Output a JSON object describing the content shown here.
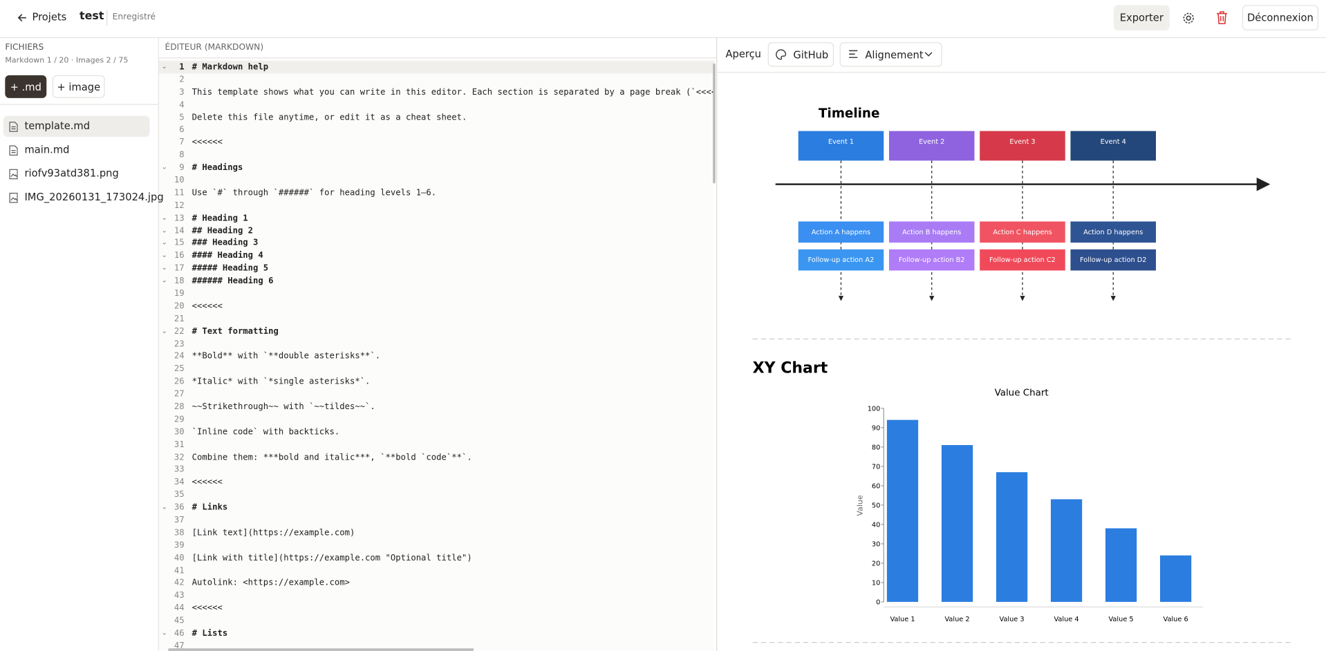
{
  "header": {
    "back": "Projets",
    "project": "test",
    "status": "Enregistré",
    "export": "Exporter",
    "logout": "Déconnexion"
  },
  "sidebar": {
    "title": "FICHIERS",
    "quota": "Markdown 1 / 20 · Images 2 / 75",
    "new_md": "+ .md",
    "new_image": "+ image",
    "files": [
      {
        "name": "template.md",
        "kind": "doc",
        "selected": true
      },
      {
        "name": "main.md",
        "kind": "doc"
      },
      {
        "name": "riofv93atd381.png",
        "kind": "img"
      },
      {
        "name": "IMG_20260131_173024.jpg",
        "kind": "img"
      }
    ]
  },
  "editor": {
    "title": "ÉDITEUR (MARKDOWN)",
    "lines": [
      {
        "number": 1,
        "text": "# Markdown help",
        "fold": true
      },
      {
        "number": 2
      },
      {
        "number": 3,
        "text": "This template shows what you can write in this editor. Each section is separated by a page break (`<<<<<<`"
      },
      {
        "number": 4
      },
      {
        "number": 5,
        "text": "Delete this file anytime, or edit it as a cheat sheet."
      },
      {
        "number": 6
      },
      {
        "number": 7,
        "text": "<<<<<<"
      },
      {
        "number": 8
      },
      {
        "number": 9,
        "text": "# Headings",
        "fold": true
      },
      {
        "number": 10
      },
      {
        "number": 11,
        "text": "Use `#` through `######` for heading levels 1–6."
      },
      {
        "number": 12
      },
      {
        "number": 13,
        "text": "# Heading 1",
        "fold": true
      },
      {
        "number": 14,
        "text": "## Heading 2",
        "fold": true
      },
      {
        "number": 15,
        "text": "### Heading 3",
        "fold": true
      },
      {
        "number": 16,
        "text": "#### Heading 4",
        "fold": true
      },
      {
        "number": 17,
        "text": "##### Heading 5",
        "fold": true
      },
      {
        "number": 18,
        "text": "###### Heading 6",
        "fold": true
      },
      {
        "number": 19
      },
      {
        "number": 20,
        "text": "<<<<<<"
      },
      {
        "number": 21
      },
      {
        "number": 22,
        "text": "# Text formatting",
        "fold": true
      },
      {
        "number": 23
      },
      {
        "number": 24,
        "text": "**Bold** with `**double asterisks**`."
      },
      {
        "number": 25
      },
      {
        "number": 26,
        "text": "*Italic* with `*single asterisks*`."
      },
      {
        "number": 27
      },
      {
        "number": 28,
        "text": "~~Strikethrough~~ with `~~tildes~~`."
      },
      {
        "number": 29
      },
      {
        "number": 30,
        "text": "`Inline code` with backticks."
      },
      {
        "number": 31
      },
      {
        "number": 32,
        "text": "Combine them: ***bold and italic***, `**bold `code`**`."
      },
      {
        "number": 33
      },
      {
        "number": 34,
        "text": "<<<<<<"
      },
      {
        "number": 35
      },
      {
        "number": 36,
        "text": "# Links",
        "fold": true
      },
      {
        "number": 37
      },
      {
        "number": 38,
        "text": "[Link text](https://example.com)"
      },
      {
        "number": 39
      },
      {
        "number": 40,
        "text": "[Link with title](https://example.com \"Optional title\")"
      },
      {
        "number": 41
      },
      {
        "number": 42,
        "text": "Autolink: <https://example.com>"
      },
      {
        "number": 43
      },
      {
        "number": 44,
        "text": "<<<<<<"
      },
      {
        "number": 45
      },
      {
        "number": 46,
        "text": "# Lists",
        "fold": true
      },
      {
        "number": 47
      }
    ]
  },
  "preview": {
    "label": "Aperçu",
    "theme": "GitHub",
    "align": "Alignement",
    "timeline": {
      "title": "Timeline",
      "events": [
        {
          "label": "Event 1",
          "color": "#2b7de0",
          "actions": [
            {
              "label": "Action A happens",
              "color": "#3a8ff0"
            },
            {
              "label": "Follow-up action A2",
              "color": "#3a96f0"
            }
          ]
        },
        {
          "label": "Event 2",
          "color": "#8f63e0",
          "actions": [
            {
              "label": "Action B happens",
              "color": "#a97cf5"
            },
            {
              "label": "Follow-up action B2",
              "color": "#b07cf8"
            }
          ]
        },
        {
          "label": "Event 3",
          "color": "#d63a4a",
          "actions": [
            {
              "label": "Action C happens",
              "color": "#f05462"
            },
            {
              "label": "Follow-up action C2",
              "color": "#f04a5a"
            }
          ]
        },
        {
          "label": "Event 4",
          "color": "#23477a",
          "actions": [
            {
              "label": "Action D happens",
              "color": "#2f5494"
            },
            {
              "label": "Follow-up action D2",
              "color": "#2e4f8e"
            }
          ]
        }
      ]
    },
    "xy_heading": "XY Chart",
    "chart": {
      "type": "bar",
      "title": "Value Chart",
      "y_label": "Value",
      "categories": [
        "Value 1",
        "Value 2",
        "Value 3",
        "Value 4",
        "Value 5",
        "Value 6"
      ],
      "values": [
        94,
        81,
        67,
        53,
        38,
        24
      ],
      "color": "#2b7de0",
      "ylim": [
        0,
        100
      ],
      "yticks": [
        0,
        10,
        20,
        30,
        40,
        50,
        60,
        70,
        80,
        90,
        100
      ]
    }
  }
}
